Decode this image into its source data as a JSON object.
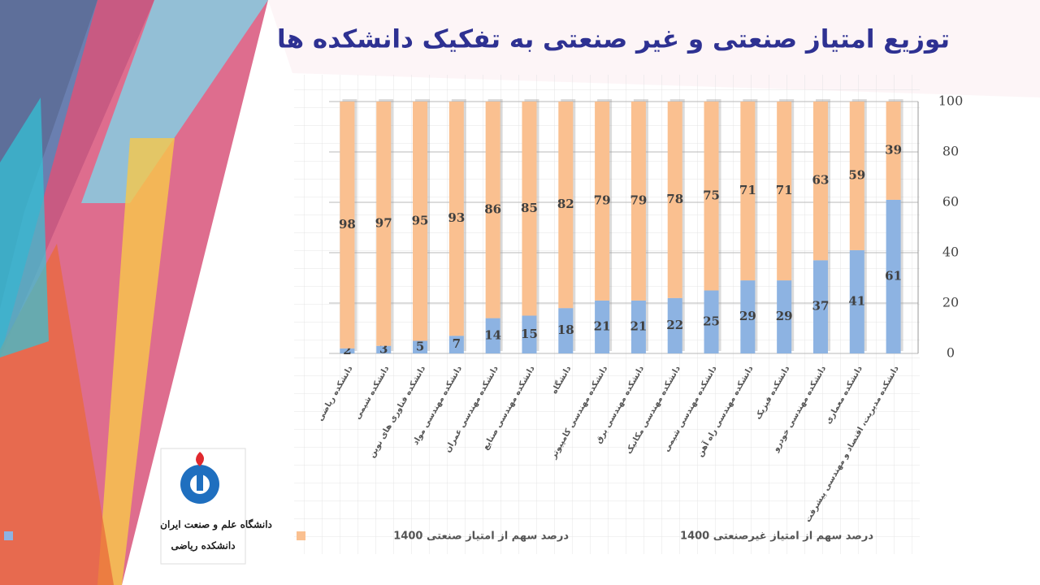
{
  "chart_data": {
    "type": "stacked-bar",
    "title": "توزیع امتیاز صنعتی و غیر صنعتی به تفکیک دانشکده ها",
    "categories": [
      "دانشکده ریاضی",
      "دانشکده شیمی",
      "دانشکده فناوری های نوین",
      "دانشکده مهندسی مواد",
      "دانشکده مهندسی عمران",
      "دانشکده مهندسی صنایع",
      "دانشگاه",
      "دانشکده مهندسی کامپیوتر",
      "دانشکده مهندسی برق",
      "دانشکده مهندسی مکانیک",
      "دانشکده مهندسی شیمی",
      "دانشکده مهندسی راه آهن",
      "دانشکده فیزیک",
      "دانشکده مهندسی خودرو",
      "دانشکده معماری",
      "دانشکده مدیریت، اقتصاد و مهندسی پیشرفت"
    ],
    "series": [
      {
        "name": "درصد سهم از امتیاز صنعتی 1400",
        "color": "#8db3e2",
        "values": [
          2,
          3,
          5,
          7,
          14,
          15,
          18,
          21,
          21,
          22,
          25,
          29,
          29,
          37,
          41,
          61
        ]
      },
      {
        "name": "درصد سهم از امتیاز غیرصنعتی 1400",
        "color": "#fac090",
        "values": [
          98,
          97,
          95,
          93,
          86,
          85,
          82,
          79,
          79,
          78,
          75,
          71,
          71,
          63,
          59,
          39
        ]
      }
    ],
    "ylim": [
      0,
      100
    ],
    "yticks": [
      0,
      20,
      40,
      60,
      80,
      100
    ],
    "grid": true,
    "legend": "bottom"
  },
  "logo": {
    "name": "دانشگاه علم و صنعت ایران",
    "faculty": "دانشکده ریاضی"
  }
}
